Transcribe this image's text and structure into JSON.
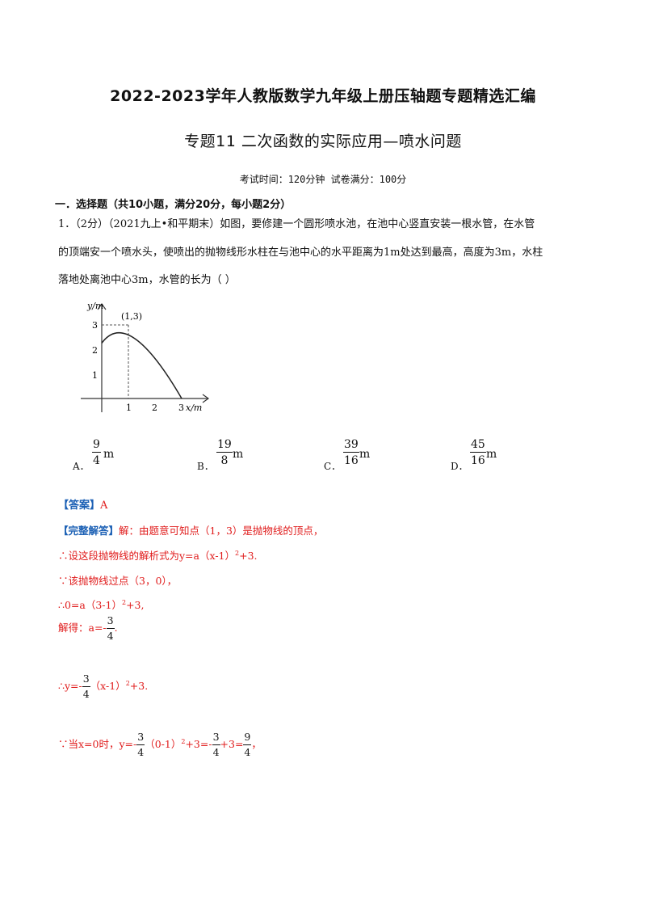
{
  "header": {
    "title": "2022-2023学年人教版数学九年级上册压轴题专题精选汇编",
    "subtitle": "专题11  二次函数的实际应用—喷水问题",
    "exam_info": "考试时间：120分钟  试卷满分：100分"
  },
  "section": {
    "heading": "一．选择题（共10小题，满分20分，每小题2分）"
  },
  "question": {
    "line1": "1．（2分）（2021九上•和平期末）如图，要修建一个圆形喷水池，在池中心竖直安装一根水管，在水管",
    "line2": "的顶端安一个喷水头，使喷出的抛物线形水柱在与池中心的水平距离为1m处达到最高，高度为3m，水柱",
    "line3": "落地处离池中心3m，水管的长为（      ）",
    "graph": {
      "y_axis_label": "y/m",
      "x_axis_label": "x/m",
      "vertex_label": "(1,3)",
      "y_ticks": [
        "3",
        "2",
        "1"
      ],
      "x_ticks": [
        "1",
        "2",
        "3"
      ]
    },
    "options": [
      {
        "label": "A．",
        "numerator": "9",
        "denominator": "4",
        "unit": "m"
      },
      {
        "label": "B．",
        "numerator": "19",
        "denominator": "8",
        "unit": "m"
      },
      {
        "label": "C．",
        "numerator": "39",
        "denominator": "16",
        "unit": "m"
      },
      {
        "label": "D．",
        "numerator": "45",
        "denominator": "16",
        "unit": "m"
      }
    ]
  },
  "answer": {
    "tag": "【答案】",
    "value": "A"
  },
  "solution": {
    "tag": "【完整解答】",
    "line1": "解：由题意可知点（1，3）是抛物线的顶点，",
    "line2_a": "∴设这段抛物线的解析式为y=a（x-1）",
    "line2_b": "+3.",
    "line3": "∵该抛物线过点（3，0），",
    "line4_a": "∴0=a（3-1）",
    "line4_b": "+3,",
    "line5_a": "解得：a=-",
    "line5_num": "3",
    "line5_den": "4",
    "line5_b": ".",
    "line6_a": "∴y=-",
    "line6_num": "3",
    "line6_den": "4",
    "line6_b": "（x-1）",
    "line6_c": "+3.",
    "line7_a": "∵当x=0时，y=-",
    "line7_num1": "3",
    "line7_den1": "4",
    "line7_b": "（0-1）",
    "line7_c": "+3=-",
    "line7_num2": "3",
    "line7_den2": "4",
    "line7_d": "+3=",
    "line7_num3": "9",
    "line7_den3": "4",
    "line7_e": "，",
    "exponent": "2"
  }
}
